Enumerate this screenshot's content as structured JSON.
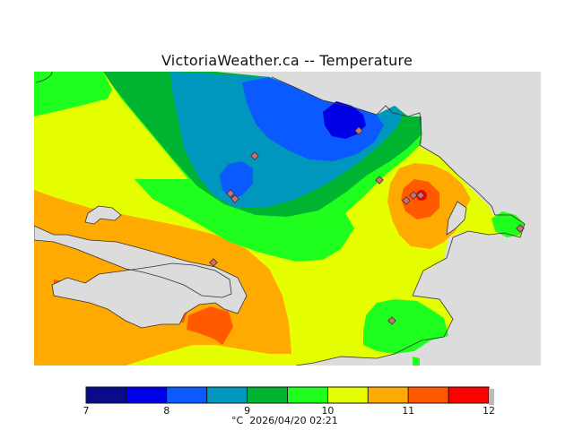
{
  "title": "VictoriaWeather.ca -- Temperature",
  "legend": {
    "unit": "°C",
    "timestamp": "2026/04/20 02:21",
    "ticks": [
      "7",
      "8",
      "9",
      "10",
      "11",
      "12"
    ],
    "colors": [
      "#0a0a8c",
      "#0000e6",
      "#0a5aff",
      "#0096be",
      "#00b432",
      "#1eff1e",
      "#e6ff00",
      "#ffaa00",
      "#ff5a00",
      "#ff0000"
    ]
  },
  "stations_count": 10,
  "colors": {
    "background_water": "#dcdcdc",
    "station_marker": "#d07070"
  }
}
